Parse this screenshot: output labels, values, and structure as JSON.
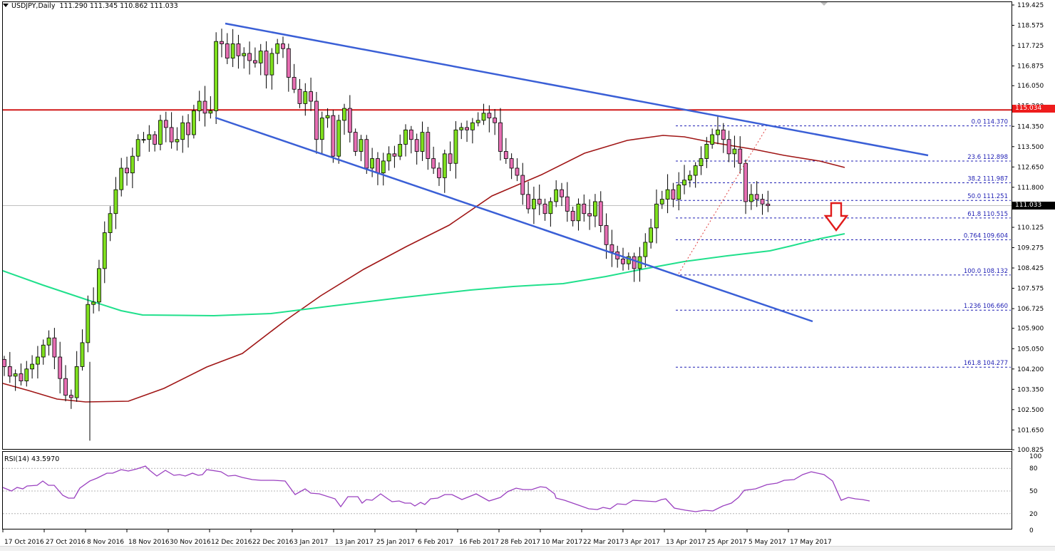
{
  "header": {
    "symbol": "USDJPY,Daily",
    "ohlc": "111.290 111.345 110.862 111.033"
  },
  "price_axis": {
    "ticks": [
      "119.425",
      "118.575",
      "117.725",
      "116.875",
      "116.050",
      "115.200",
      "114.350",
      "113.500",
      "112.650",
      "111.800",
      "110.125",
      "109.275",
      "108.425",
      "107.575",
      "106.725",
      "105.900",
      "105.050",
      "104.200",
      "103.350",
      "102.500",
      "101.650",
      "100.825"
    ],
    "current_price": "111.033",
    "resistance_price": "115.034"
  },
  "rsi": {
    "label": "RSI(14) 43.5970",
    "ticks": [
      "100",
      "80",
      "50",
      "20",
      "0"
    ],
    "levels": [
      80,
      50,
      20
    ]
  },
  "time_axis": {
    "labels": [
      "17 Oct 2016",
      "27 Oct 2016",
      "8 Nov 2016",
      "18 Nov 2016",
      "30 Nov 2016",
      "12 Dec 2016",
      "22 Dec 2016",
      "3 Jan 2017",
      "13 Jan 2017",
      "25 Jan 2017",
      "6 Feb 2017",
      "16 Feb 2017",
      "28 Feb 2017",
      "10 Mar 2017",
      "22 Mar 2017",
      "3 Apr 2017",
      "13 Apr 2017",
      "25 Apr 2017",
      "5 May 2017",
      "17 May 2017"
    ]
  },
  "fibonacci": [
    {
      "label": "0.0 114.370",
      "price": 114.37,
      "right_value": "114.370"
    },
    {
      "label": "23.6 112.898",
      "price": 112.898,
      "right_value": "112.898"
    },
    {
      "label": "38.2 111.987",
      "price": 111.987,
      "right_value": "111.987"
    },
    {
      "label": "50.0 111.251",
      "price": 111.251,
      "right_value": "111.251"
    },
    {
      "label": "61.8 110.515",
      "price": 110.515,
      "right_value": "110.515"
    },
    {
      "label": "0.764 109.604",
      "price": 109.604,
      "right_value": "109.604"
    },
    {
      "label": "100.0 108.132",
      "price": 108.132,
      "right_value": "108.132"
    },
    {
      "label": "1.236 106.660",
      "price": 106.66,
      "right_value": "106.660"
    },
    {
      "label": "161.8 104.277",
      "price": 104.277,
      "right_value": "104.277"
    }
  ],
  "colors": {
    "bull_candle": "#7fe01e",
    "bear_candle": "#e76fb3",
    "wick": "#000000",
    "resistance_line": "#d11a1a",
    "channel_line": "#3a5fd6",
    "ma_100": "#a01616",
    "ma_200": "#20e08c",
    "fib_line": "#1f1fb4",
    "rsi_line": "#9a40c0",
    "arrow": "#e01a1a",
    "current_price_bg": "#000000",
    "resistance_tag_bg": "#ee1c1c"
  },
  "chart_data": {
    "type": "candlestick",
    "title": "USDJPY, Daily",
    "ylabel": "Price",
    "ylim": [
      100.825,
      119.425
    ],
    "x_labels": [
      "17 Oct 2016",
      "27 Oct 2016",
      "8 Nov 2016",
      "18 Nov 2016",
      "30 Nov 2016",
      "12 Dec 2016",
      "22 Dec 2016",
      "3 Jan 2017",
      "13 Jan 2017",
      "25 Jan 2017",
      "6 Feb 2017",
      "16 Feb 2017",
      "28 Feb 2017",
      "10 Mar 2017",
      "22 Mar 2017",
      "3 Apr 2017",
      "13 Apr 2017",
      "25 Apr 2017",
      "5 May 2017",
      "17 May 2017"
    ],
    "last_ohlc": {
      "open": 111.29,
      "high": 111.345,
      "low": 110.862,
      "close": 111.033
    },
    "candles_close_approx": [
      104.3,
      103.9,
      104.0,
      103.7,
      104.2,
      104.4,
      104.7,
      105.2,
      105.5,
      104.7,
      103.8,
      103.1,
      103.0,
      104.3,
      105.3,
      106.9,
      107.0,
      108.4,
      109.9,
      110.7,
      111.7,
      112.6,
      112.4,
      113.1,
      113.8,
      113.8,
      114.0,
      113.6,
      114.6,
      114.3,
      113.7,
      113.8,
      114.5,
      114.0,
      115.0,
      115.4,
      114.9,
      115.0,
      117.9,
      117.8,
      117.2,
      117.8,
      117.3,
      117.4,
      117.1,
      117.0,
      117.5,
      116.5,
      117.4,
      117.8,
      117.6,
      116.4,
      115.9,
      115.3,
      115.8,
      115.4,
      113.8,
      114.7,
      114.8,
      113.1,
      114.6,
      115.1,
      114.1,
      113.3,
      113.8,
      112.6,
      113.0,
      112.4,
      112.9,
      113.2,
      113.1,
      113.6,
      114.2,
      113.8,
      113.3,
      114.1,
      113.0,
      112.6,
      112.2,
      113.2,
      112.8,
      114.2,
      114.3,
      114.2,
      114.5,
      114.6,
      114.9,
      114.7,
      114.5,
      113.3,
      113.0,
      112.6,
      112.3,
      111.5,
      110.9,
      111.3,
      111.1,
      110.7,
      111.2,
      111.7,
      111.4,
      110.8,
      110.4,
      111.1,
      110.7,
      110.6,
      111.2,
      110.2,
      109.4,
      109.1,
      108.8,
      108.6,
      108.9,
      108.4,
      108.9,
      109.5,
      110.1,
      111.1,
      111.3,
      111.7,
      111.3,
      111.9,
      112.1,
      112.3,
      112.7,
      113.0,
      113.6,
      114.0,
      114.2,
      113.8,
      113.2,
      113.4,
      112.8,
      111.2,
      111.5,
      111.3,
      111.1,
      111.03
    ],
    "overlays": [
      {
        "name": "Resistance",
        "type": "hline",
        "value": 115.034
      },
      {
        "name": "Channel upper",
        "type": "trendline",
        "from": [
          "12 Dec 2016",
          118.8
        ],
        "to": [
          "~25 May 2017",
          113.2
        ]
      },
      {
        "name": "Channel lower",
        "type": "trendline",
        "from": [
          "12 Dec 2016",
          114.6
        ],
        "to": [
          "~25 May 2017",
          106.2
        ]
      },
      {
        "name": "100 SMA",
        "type": "line",
        "color": "#a01616"
      },
      {
        "name": "200 SMA",
        "type": "line",
        "color": "#20e08c"
      },
      {
        "name": "Fibonacci retracement",
        "from": 108.132,
        "to": 114.37
      }
    ],
    "annotations": [
      "Red down arrow near 110.5 signaling bearish move toward 109.6 / 200 SMA"
    ],
    "rsi": {
      "period": 14,
      "value": 43.597,
      "levels": [
        20,
        50,
        80
      ],
      "range": [
        0,
        100
      ]
    }
  }
}
